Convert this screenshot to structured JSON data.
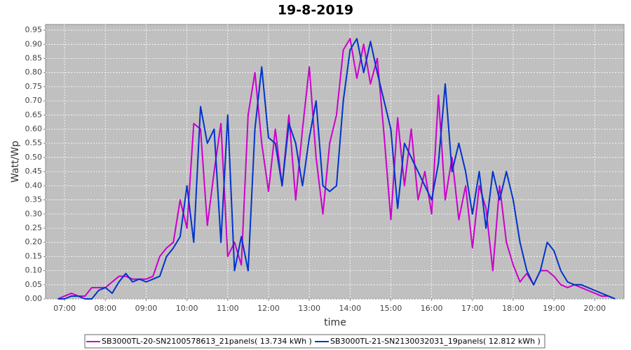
{
  "chart_data": {
    "type": "line",
    "title": "19-8-2019",
    "x_label": "time",
    "y_label": "Watt/Wp",
    "x": [
      "06:50",
      "07:00",
      "07:10",
      "07:20",
      "07:30",
      "07:40",
      "07:50",
      "08:00",
      "08:10",
      "08:20",
      "08:30",
      "08:40",
      "08:50",
      "09:00",
      "09:10",
      "09:20",
      "09:30",
      "09:40",
      "09:50",
      "10:00",
      "10:10",
      "10:20",
      "10:30",
      "10:40",
      "10:50",
      "11:00",
      "11:10",
      "11:20",
      "11:30",
      "11:40",
      "11:50",
      "12:00",
      "12:10",
      "12:20",
      "12:30",
      "12:40",
      "12:50",
      "13:00",
      "13:10",
      "13:20",
      "13:30",
      "13:40",
      "13:50",
      "14:00",
      "14:10",
      "14:20",
      "14:30",
      "14:40",
      "14:50",
      "15:00",
      "15:10",
      "15:20",
      "15:30",
      "15:40",
      "15:50",
      "16:00",
      "16:10",
      "16:20",
      "16:30",
      "16:40",
      "16:50",
      "17:00",
      "17:10",
      "17:20",
      "17:30",
      "17:40",
      "17:50",
      "18:00",
      "18:10",
      "18:20",
      "18:30",
      "18:40",
      "18:50",
      "19:00",
      "19:10",
      "19:20",
      "19:30",
      "19:40",
      "19:50",
      "20:00",
      "20:10",
      "20:20",
      "20:30"
    ],
    "series": [
      {
        "name": "SB3000TL-20-SN2100578613_21panels( 13.734 kWh )",
        "color": "#cc00cc",
        "values": [
          0.0,
          0.01,
          0.02,
          0.01,
          0.01,
          0.04,
          0.04,
          0.04,
          0.06,
          0.08,
          0.08,
          0.07,
          0.07,
          0.07,
          0.08,
          0.15,
          0.18,
          0.2,
          0.35,
          0.25,
          0.62,
          0.6,
          0.26,
          0.45,
          0.62,
          0.15,
          0.2,
          0.12,
          0.65,
          0.8,
          0.55,
          0.38,
          0.6,
          0.4,
          0.65,
          0.35,
          0.6,
          0.82,
          0.5,
          0.3,
          0.55,
          0.65,
          0.88,
          0.92,
          0.78,
          0.9,
          0.76,
          0.85,
          0.58,
          0.28,
          0.64,
          0.4,
          0.6,
          0.35,
          0.45,
          0.3,
          0.72,
          0.35,
          0.5,
          0.28,
          0.4,
          0.18,
          0.4,
          0.32,
          0.1,
          0.4,
          0.2,
          0.12,
          0.06,
          0.09,
          0.05,
          0.1,
          0.1,
          0.08,
          0.05,
          0.04,
          0.05,
          0.04,
          0.03,
          0.02,
          0.01,
          0.01,
          0.0
        ]
      },
      {
        "name": "SB3000TL-21-SN2130032031_19panels( 12.812 kWh )",
        "color": "#0033cc",
        "values": [
          0.0,
          0.0,
          0.01,
          0.01,
          0.0,
          0.0,
          0.03,
          0.04,
          0.02,
          0.06,
          0.09,
          0.06,
          0.07,
          0.06,
          0.07,
          0.08,
          0.15,
          0.18,
          0.22,
          0.4,
          0.2,
          0.68,
          0.55,
          0.6,
          0.2,
          0.65,
          0.1,
          0.22,
          0.1,
          0.6,
          0.82,
          0.57,
          0.55,
          0.4,
          0.62,
          0.55,
          0.4,
          0.57,
          0.7,
          0.4,
          0.38,
          0.4,
          0.7,
          0.88,
          0.92,
          0.8,
          0.91,
          0.8,
          0.7,
          0.6,
          0.32,
          0.55,
          0.5,
          0.45,
          0.4,
          0.35,
          0.48,
          0.76,
          0.45,
          0.55,
          0.45,
          0.3,
          0.45,
          0.25,
          0.45,
          0.35,
          0.45,
          0.35,
          0.2,
          0.1,
          0.05,
          0.1,
          0.2,
          0.17,
          0.1,
          0.06,
          0.05,
          0.05,
          0.04,
          0.03,
          0.02,
          0.01,
          0.0
        ]
      }
    ],
    "xlim": [
      "06:32",
      "20:43"
    ],
    "xticks": [
      "07:00",
      "08:00",
      "09:00",
      "10:00",
      "11:00",
      "12:00",
      "13:00",
      "14:00",
      "15:00",
      "16:00",
      "17:00",
      "18:00",
      "19:00",
      "20:00"
    ],
    "ylim": [
      0,
      0.97
    ],
    "yticks": [
      {
        "value": 0,
        "label": "0.00"
      },
      {
        "value": 0.05,
        "label": "0.05"
      },
      {
        "value": 0.1,
        "label": "0.10"
      },
      {
        "value": 0.15,
        "label": "0.15"
      },
      {
        "value": 0.2,
        "label": "0.20"
      },
      {
        "value": 0.25,
        "label": "0.25"
      },
      {
        "value": 0.3,
        "label": "0.30"
      },
      {
        "value": 0.35,
        "label": "0.35"
      },
      {
        "value": 0.4,
        "label": "0.40"
      },
      {
        "value": 0.45,
        "label": "0.45"
      },
      {
        "value": 0.5,
        "label": "0.50"
      },
      {
        "value": 0.55,
        "label": "0.55"
      },
      {
        "value": 0.6,
        "label": "0.60"
      },
      {
        "value": 0.65,
        "label": "0.65"
      },
      {
        "value": 0.7,
        "label": "0.70"
      },
      {
        "value": 0.75,
        "label": "0.75"
      },
      {
        "value": 0.8,
        "label": "0.80"
      },
      {
        "value": 0.85,
        "label": "0.85"
      },
      {
        "value": 0.9,
        "label": "0.90"
      },
      {
        "value": 0.95,
        "label": "0.95"
      }
    ],
    "grid": true
  }
}
